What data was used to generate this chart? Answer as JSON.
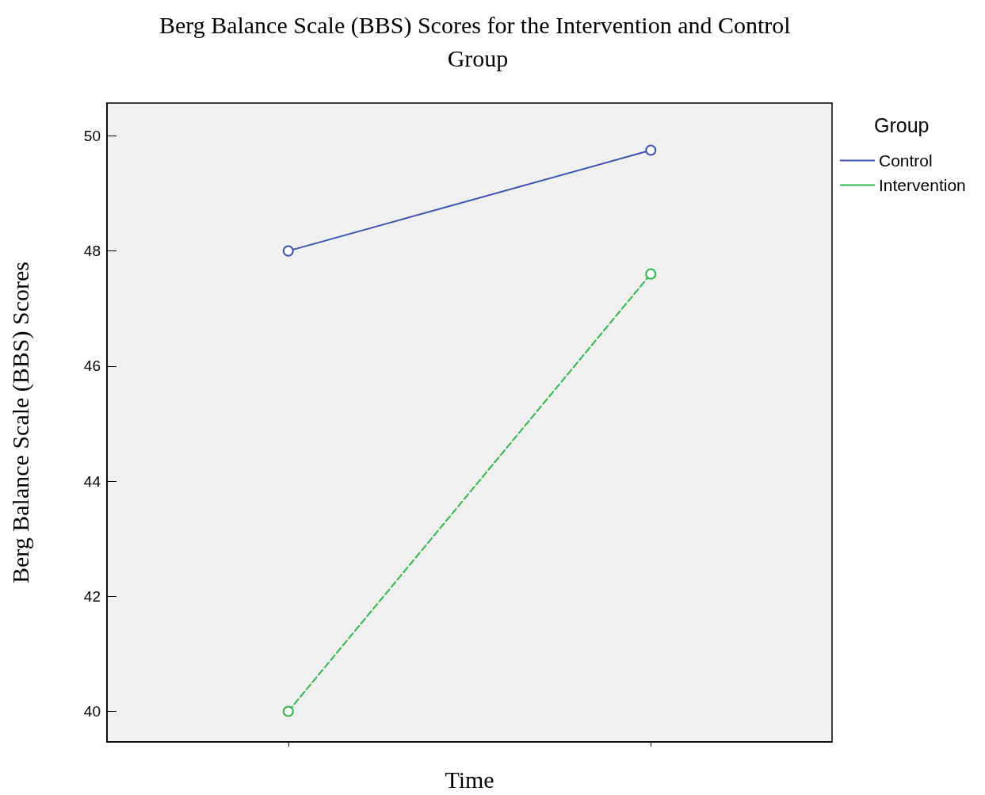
{
  "chart_data": {
    "type": "line",
    "title": "Berg Balance Scale (BBS) Scores for the Intervention and Control Group",
    "xlabel": "Time",
    "ylabel": "Berg Balance Scale (BBS) Scores",
    "legend_title": "Group",
    "categories": [
      null,
      null
    ],
    "series": [
      {
        "name": "Control",
        "color": "#3f51b1",
        "values": [
          48.0,
          49.75
        ],
        "line_style": "solid"
      },
      {
        "name": "Intervention",
        "color": "#2db84a",
        "values": [
          40.0,
          47.6
        ],
        "line_style": "dashed"
      }
    ],
    "ylim": [
      39.47,
      50.57
    ],
    "yticks": [
      40,
      42,
      44,
      46,
      48,
      50
    ],
    "grid": false,
    "legend": "top right",
    "marker": "circle"
  }
}
